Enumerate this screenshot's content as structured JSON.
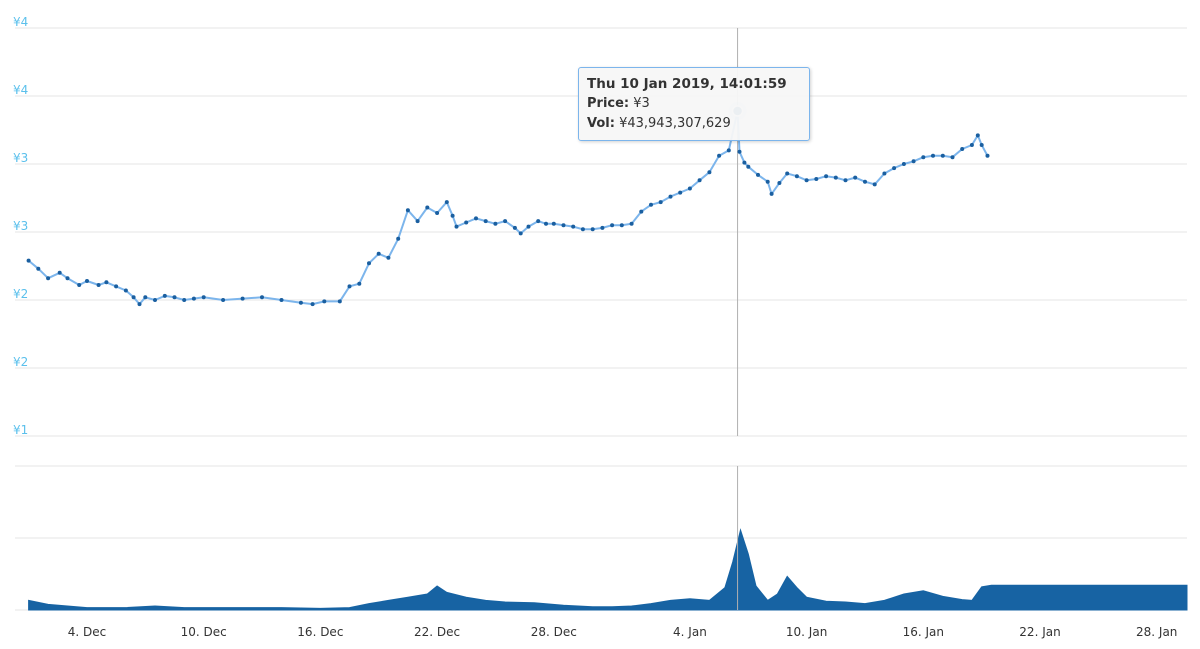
{
  "colors": {
    "price_line": "#2f7ed8",
    "price_line_light": "#7cb5ec",
    "price_marker": "#1a5fa0",
    "volume_fill": "#1763a3",
    "axis_label": "#5bc0ec",
    "grid": "#e6e6e6",
    "crosshair": "#b0b0b0"
  },
  "tooltip": {
    "date": "Thu 10 Jan 2019, 14:01:59",
    "price_label": "Price:",
    "price_value": "¥3",
    "vol_label": "Vol:",
    "vol_value": "¥43,943,307,629"
  },
  "chart_data": [
    {
      "type": "line",
      "series": [
        {
          "values": [
            [
              1.0,
              2.29
            ],
            [
              1.5,
              2.23
            ],
            [
              2.0,
              2.16
            ],
            [
              2.6,
              2.2
            ],
            [
              3.0,
              2.16
            ],
            [
              3.6,
              2.11
            ],
            [
              4.0,
              2.14
            ],
            [
              4.6,
              2.11
            ],
            [
              5.0,
              2.13
            ],
            [
              5.5,
              2.1
            ],
            [
              6.0,
              2.07
            ],
            [
              6.4,
              2.02
            ],
            [
              6.7,
              1.97
            ],
            [
              7.0,
              2.02
            ],
            [
              7.5,
              2.0
            ],
            [
              8.0,
              2.03
            ],
            [
              8.5,
              2.02
            ],
            [
              9.0,
              2.0
            ],
            [
              9.5,
              2.01
            ],
            [
              10.0,
              2.02
            ],
            [
              11.0,
              2.0
            ],
            [
              12.0,
              2.01
            ],
            [
              13.0,
              2.02
            ],
            [
              14.0,
              2.0
            ],
            [
              15.0,
              1.98
            ],
            [
              15.6,
              1.97
            ],
            [
              16.2,
              1.99
            ],
            [
              17.0,
              1.99
            ],
            [
              17.5,
              2.1
            ],
            [
              18.0,
              2.12
            ],
            [
              18.5,
              2.27
            ],
            [
              19.0,
              2.34
            ],
            [
              19.5,
              2.31
            ],
            [
              20.0,
              2.45
            ],
            [
              20.5,
              2.66
            ],
            [
              21.0,
              2.58
            ],
            [
              21.5,
              2.68
            ],
            [
              22.0,
              2.64
            ],
            [
              22.5,
              2.72
            ],
            [
              22.8,
              2.62
            ],
            [
              23.0,
              2.54
            ],
            [
              23.5,
              2.57
            ],
            [
              24.0,
              2.6
            ],
            [
              24.5,
              2.58
            ],
            [
              25.0,
              2.56
            ],
            [
              25.5,
              2.58
            ],
            [
              26.0,
              2.53
            ],
            [
              26.3,
              2.49
            ],
            [
              26.7,
              2.54
            ],
            [
              27.2,
              2.58
            ],
            [
              27.6,
              2.56
            ],
            [
              28.0,
              2.56
            ],
            [
              28.5,
              2.55
            ],
            [
              29.0,
              2.54
            ],
            [
              29.5,
              2.52
            ],
            [
              30.0,
              2.52
            ],
            [
              30.5,
              2.53
            ],
            [
              31.0,
              2.55
            ],
            [
              31.5,
              2.55
            ],
            [
              32.0,
              2.56
            ],
            [
              32.5,
              2.65
            ],
            [
              33.0,
              2.7
            ],
            [
              33.5,
              2.72
            ],
            [
              34.0,
              2.76
            ],
            [
              34.5,
              2.79
            ],
            [
              35.0,
              2.82
            ],
            [
              35.5,
              2.88
            ],
            [
              36.0,
              2.94
            ],
            [
              36.5,
              3.06
            ],
            [
              37.0,
              3.1
            ],
            [
              37.45,
              3.39
            ],
            [
              37.55,
              3.09
            ],
            [
              37.8,
              3.01
            ],
            [
              38.0,
              2.98
            ],
            [
              38.5,
              2.92
            ],
            [
              39.0,
              2.87
            ],
            [
              39.2,
              2.78
            ],
            [
              39.6,
              2.86
            ],
            [
              40.0,
              2.93
            ],
            [
              40.5,
              2.91
            ],
            [
              41.0,
              2.88
            ],
            [
              41.5,
              2.89
            ],
            [
              42.0,
              2.91
            ],
            [
              42.5,
              2.9
            ],
            [
              43.0,
              2.88
            ],
            [
              43.5,
              2.9
            ],
            [
              44.0,
              2.87
            ],
            [
              44.5,
              2.85
            ],
            [
              45.0,
              2.93
            ],
            [
              45.5,
              2.97
            ],
            [
              46.0,
              3.0
            ],
            [
              46.5,
              3.02
            ],
            [
              47.0,
              3.05
            ],
            [
              47.5,
              3.06
            ],
            [
              48.0,
              3.06
            ],
            [
              48.5,
              3.05
            ],
            [
              49.0,
              3.11
            ],
            [
              49.5,
              3.14
            ],
            [
              49.8,
              3.21
            ],
            [
              50.0,
              3.14
            ],
            [
              50.3,
              3.06
            ]
          ]
        }
      ],
      "ylim": [
        1.0,
        4.0
      ],
      "y_ticks": [
        "¥4",
        "¥4",
        "¥3",
        "¥3",
        "¥2",
        "¥2",
        "¥1"
      ],
      "x_ticks": [
        "4. Dec",
        "10. Dec",
        "16. Dec",
        "22. Dec",
        "28. Dec",
        "4. Jan",
        "10. Jan",
        "16. Jan",
        "22. Jan",
        "28. Jan"
      ],
      "x_tick_days": [
        4,
        10,
        16,
        22,
        28,
        35,
        41,
        47,
        53,
        59
      ],
      "highlighted_point": {
        "x": 37.45,
        "y": 3.39
      }
    },
    {
      "type": "area",
      "series": [
        {
          "values": [
            [
              1.0,
              12
            ],
            [
              2.0,
              7
            ],
            [
              3.0,
              5
            ],
            [
              4.0,
              3
            ],
            [
              6.0,
              3
            ],
            [
              7.5,
              5
            ],
            [
              9.0,
              3
            ],
            [
              12.0,
              3
            ],
            [
              14.0,
              3
            ],
            [
              16.0,
              2
            ],
            [
              17.5,
              3
            ],
            [
              18.5,
              8
            ],
            [
              19.5,
              12
            ],
            [
              20.5,
              16
            ],
            [
              21.5,
              20
            ],
            [
              22.0,
              30
            ],
            [
              22.5,
              22
            ],
            [
              23.5,
              16
            ],
            [
              24.5,
              12
            ],
            [
              25.5,
              10
            ],
            [
              27.0,
              9
            ],
            [
              28.5,
              6
            ],
            [
              30.0,
              4
            ],
            [
              31.0,
              4
            ],
            [
              32.0,
              5
            ],
            [
              33.0,
              8
            ],
            [
              34.0,
              12
            ],
            [
              35.0,
              14
            ],
            [
              36.0,
              12
            ],
            [
              36.8,
              28
            ],
            [
              37.2,
              60
            ],
            [
              37.6,
              100
            ],
            [
              38.0,
              70
            ],
            [
              38.4,
              30
            ],
            [
              39.0,
              12
            ],
            [
              39.5,
              20
            ],
            [
              40.0,
              42
            ],
            [
              40.5,
              28
            ],
            [
              41.0,
              16
            ],
            [
              42.0,
              11
            ],
            [
              43.0,
              10
            ],
            [
              44.0,
              8
            ],
            [
              45.0,
              12
            ],
            [
              46.0,
              20
            ],
            [
              47.0,
              24
            ],
            [
              48.0,
              17
            ],
            [
              49.0,
              13
            ],
            [
              49.5,
              12
            ],
            [
              50.0,
              29
            ],
            [
              50.5,
              31
            ]
          ]
        }
      ],
      "ylim": [
        0,
        100
      ]
    }
  ]
}
